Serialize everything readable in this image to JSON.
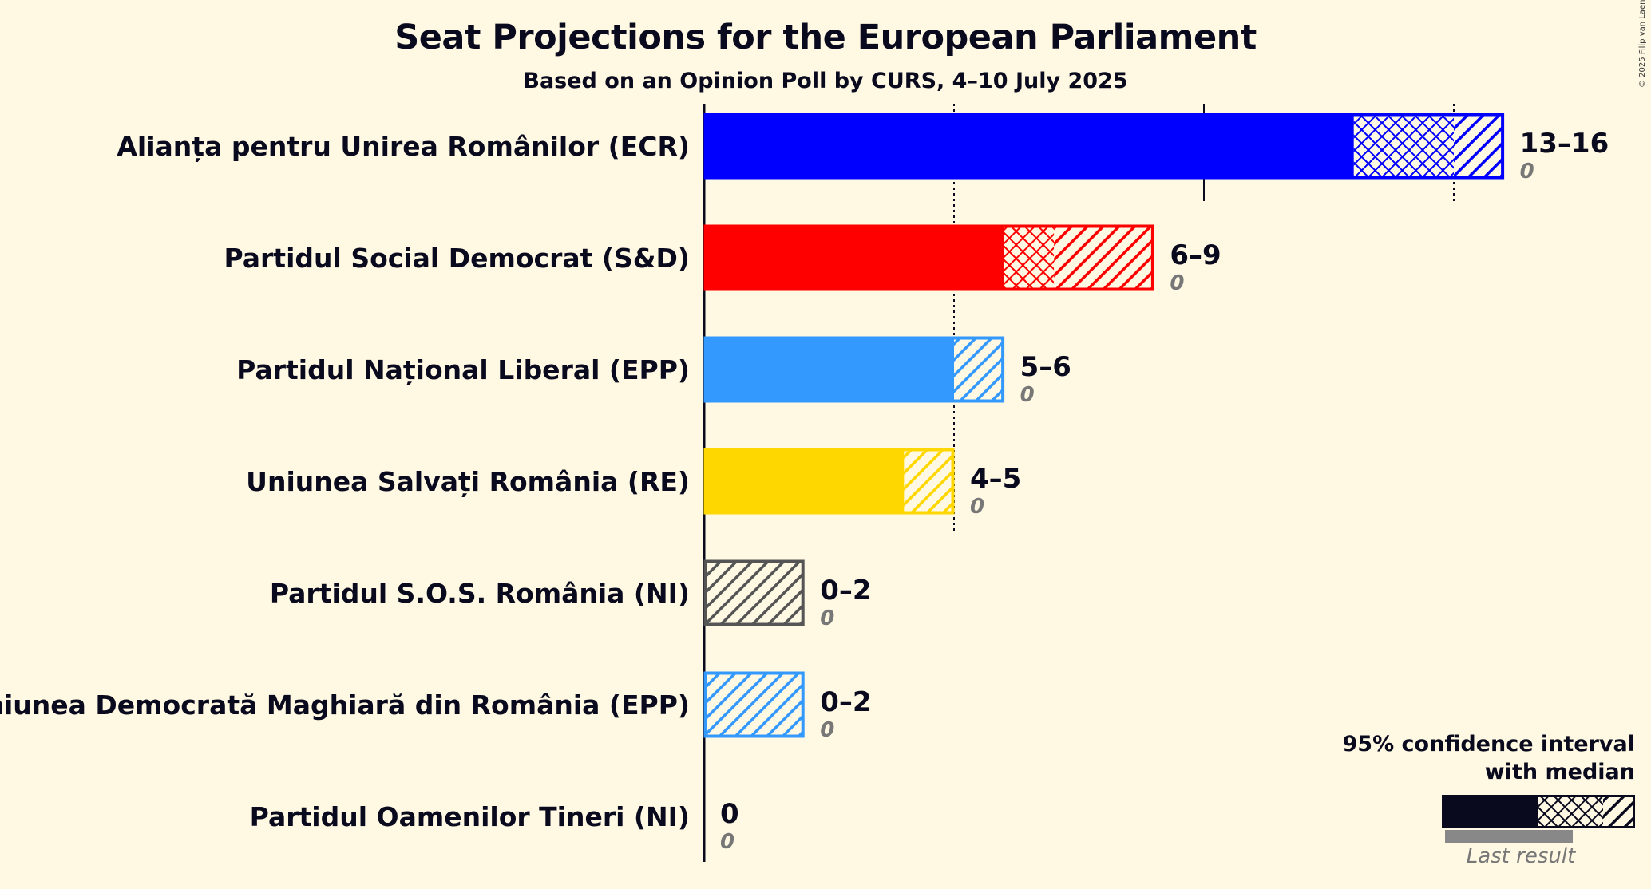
{
  "title": "Seat Projections for the European Parliament",
  "subtitle": "Based on an Opinion Poll by CURS, 4–10 July 2025",
  "copyright": "© 2025 Filip van Laenen",
  "legend": {
    "line1": "95% confidence interval",
    "line2": "with median",
    "last_result": "Last result"
  },
  "colors": {
    "background": "#FFF9E3",
    "ECR": "#0000FF",
    "S&D": "#FF0000",
    "EPP": "#3399FF",
    "RE": "#FFD700",
    "NI_sos": "#555555",
    "legend": "#0a0a1e",
    "last_result": "#888888"
  },
  "chart_data": {
    "type": "bar",
    "orientation": "horizontal",
    "title": "Seat Projections for the European Parliament",
    "subtitle": "Based on an Opinion Poll by CURS, 4–10 July 2025",
    "xlim": [
      0,
      16
    ],
    "gridlines": [
      5,
      10,
      15
    ],
    "categories": [
      "Alianța pentru Unirea Românilor (ECR)",
      "Partidul Social Democrat (S&D)",
      "Partidul Național Liberal (EPP)",
      "Uniunea Salvați România (RE)",
      "Partidul S.O.S. România (NI)",
      "Uniunea Democrată Maghiară din România (EPP)",
      "Partidul Oamenilor Tineri (NI)"
    ],
    "series": [
      {
        "party": "Alianța pentru Unirea Românilor (ECR)",
        "low": 13,
        "median": 15,
        "high": 16,
        "range": "13–16",
        "last": 0,
        "last_label": "0",
        "color": "#0000FF",
        "outline": "#0000FF"
      },
      {
        "party": "Partidul Social Democrat (S&D)",
        "low": 6,
        "median": 7,
        "high": 9,
        "range": "6–9",
        "last": 0,
        "last_label": "0",
        "color": "#FF0000",
        "outline": "#FF0000"
      },
      {
        "party": "Partidul Național Liberal (EPP)",
        "low": 5,
        "median": 5,
        "high": 6,
        "range": "5–6",
        "last": 0,
        "last_label": "0",
        "color": "#3399FF",
        "outline": "#3399FF"
      },
      {
        "party": "Uniunea Salvați România (RE)",
        "low": 4,
        "median": 4,
        "high": 5,
        "range": "4–5",
        "last": 0,
        "last_label": "0",
        "color": "#FFD700",
        "outline": "#FFD700"
      },
      {
        "party": "Partidul S.O.S. România (NI)",
        "low": 0,
        "median": 0,
        "high": 2,
        "range": "0–2",
        "last": 0,
        "last_label": "0",
        "color": "#555555",
        "outline": "#555555"
      },
      {
        "party": "Uniunea Democrată Maghiară din România (EPP)",
        "low": 0,
        "median": 0,
        "high": 2,
        "range": "0–2",
        "last": 0,
        "last_label": "0",
        "color": "#3399FF",
        "outline": "#3399FF"
      },
      {
        "party": "Partidul Oamenilor Tineri (NI)",
        "low": 0,
        "median": 0,
        "high": 0,
        "range": "0",
        "last": 0,
        "last_label": "0",
        "color": "#888888",
        "outline": "#888888"
      }
    ]
  }
}
